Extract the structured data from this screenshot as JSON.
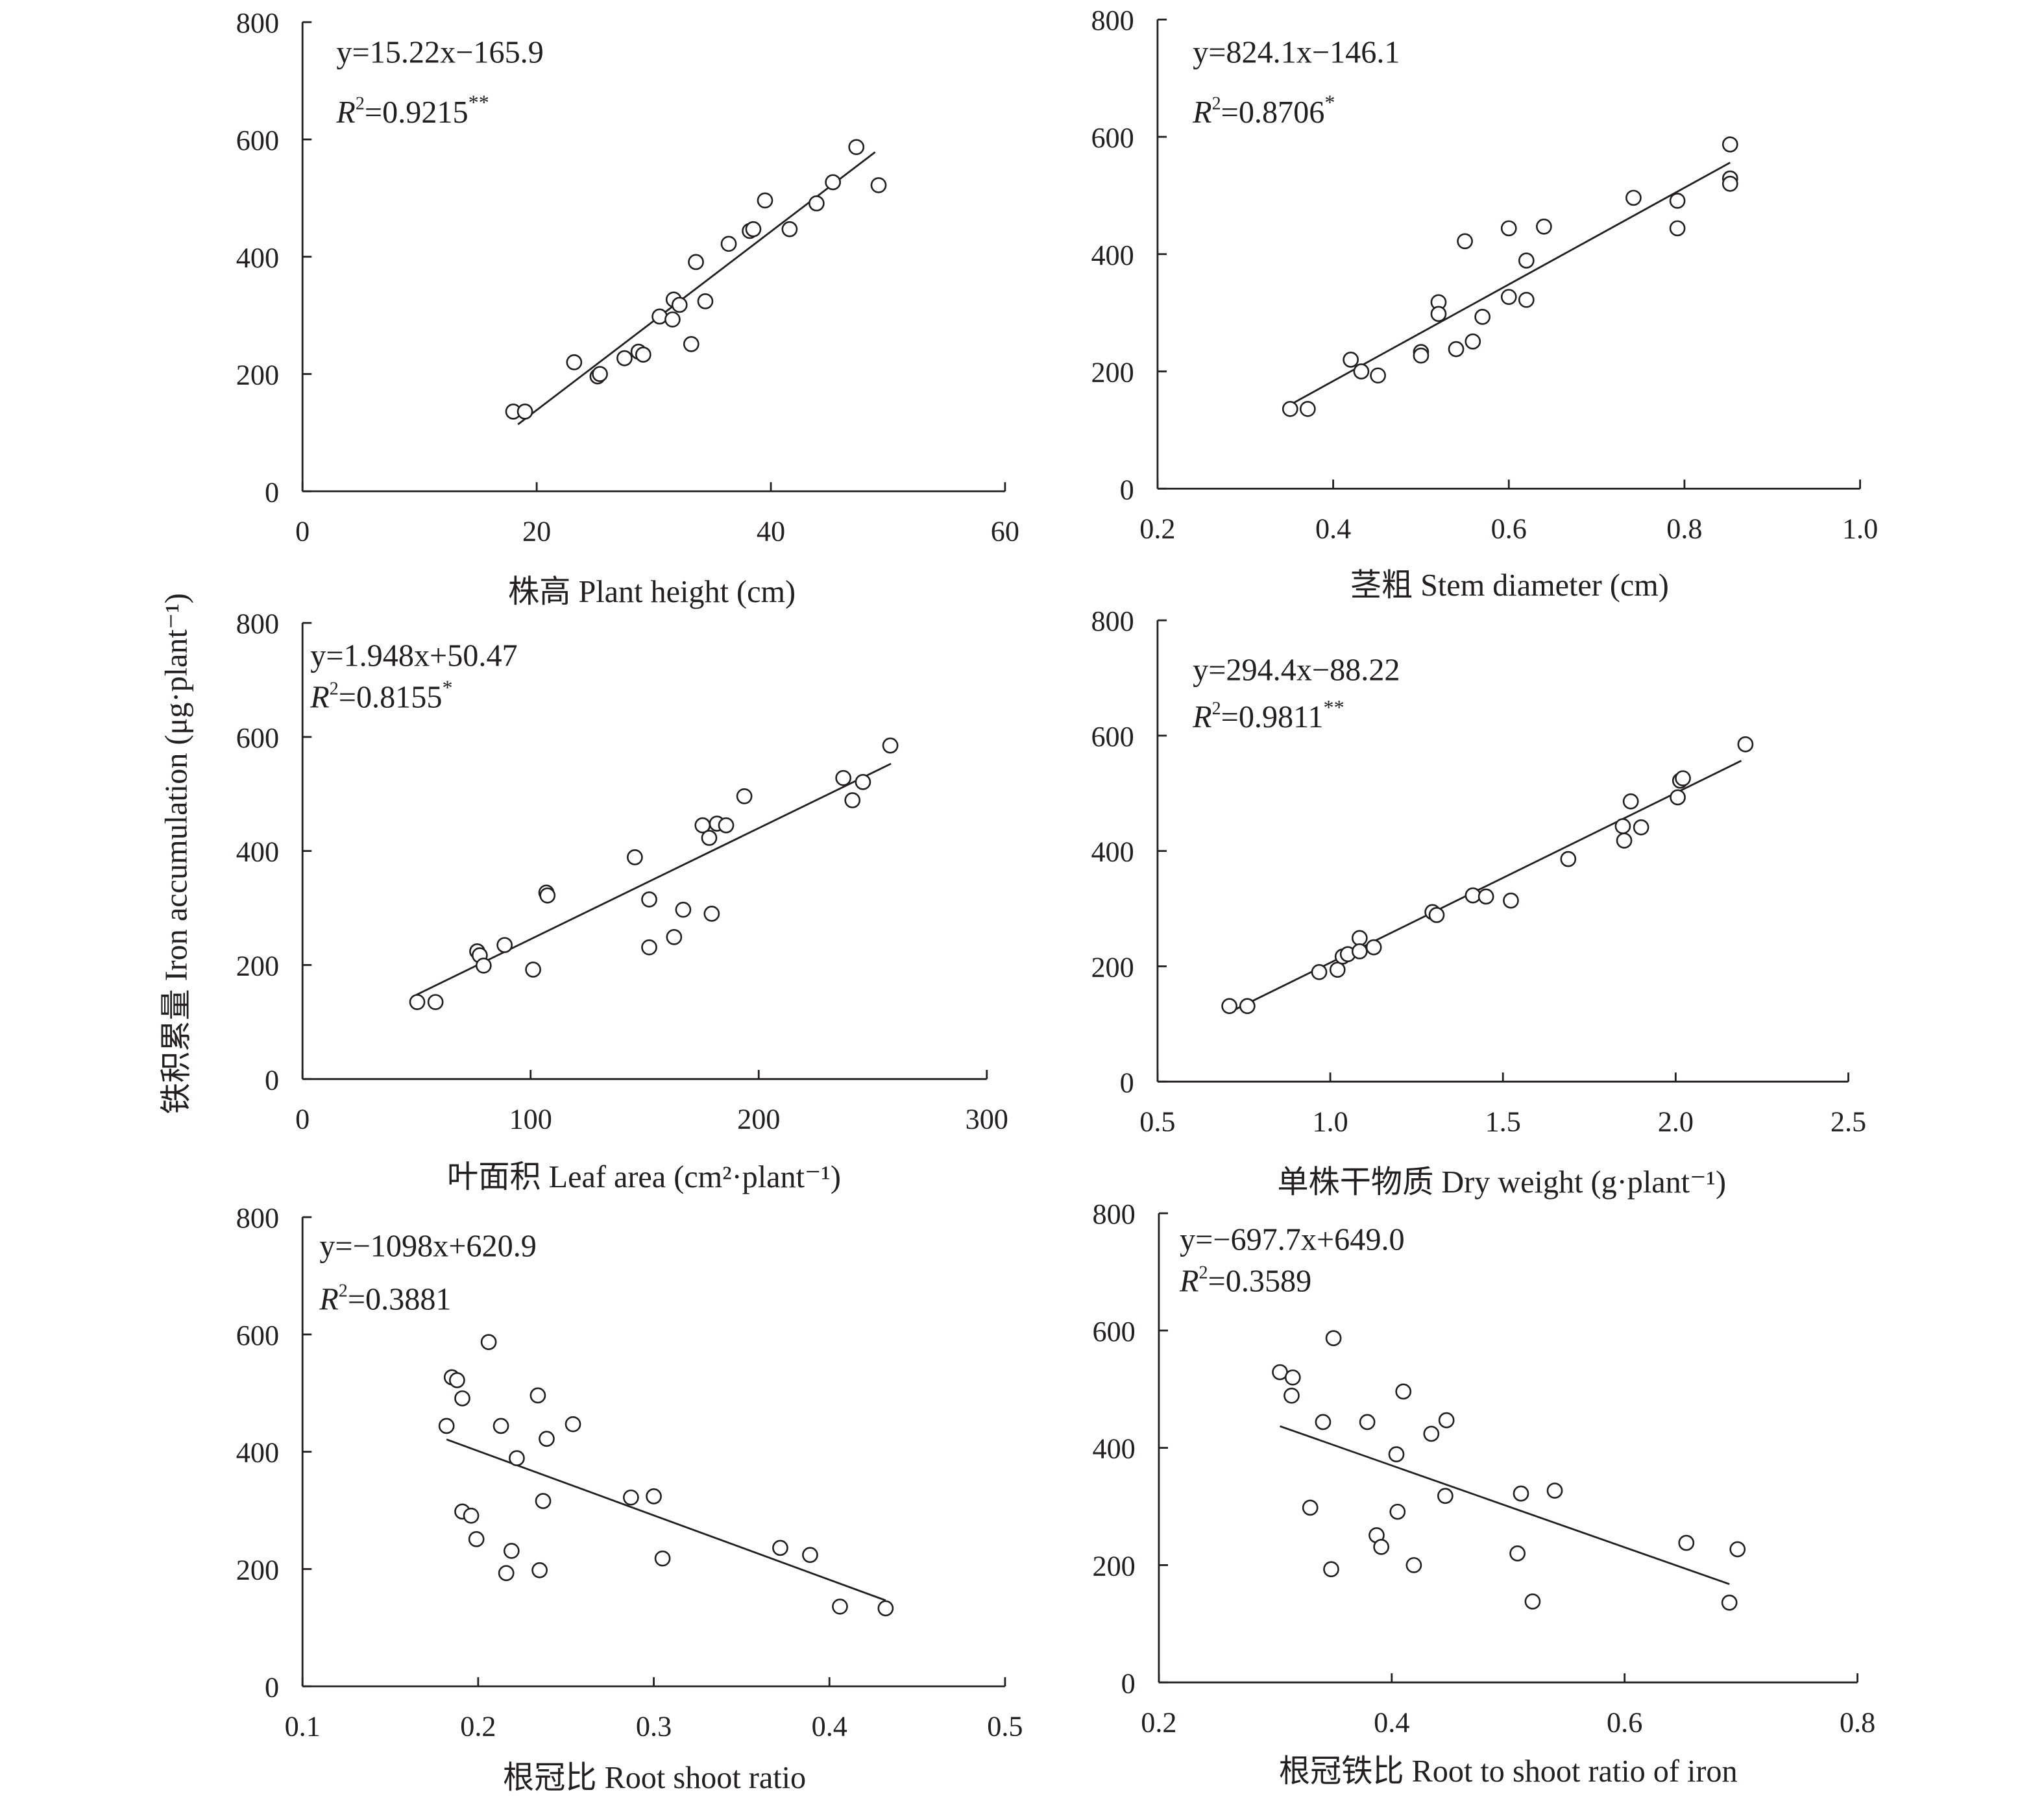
{
  "chart_data": [
    {
      "type": "scatter",
      "xlabel": "株高 Plant height (cm)",
      "xlim": [
        0,
        60
      ],
      "xticks": [
        0,
        20,
        40,
        60
      ],
      "ylim": [
        0,
        800
      ],
      "yticks": [
        0,
        200,
        400,
        600,
        800
      ],
      "equation": "y=15.22x−165.9",
      "r2": "0.9215",
      "significance": "**",
      "fit": {
        "slope": 15.22,
        "intercept": -165.9,
        "x_range": [
          18.4,
          48.9
        ]
      },
      "x": [
        18.0,
        19.0,
        23.2,
        25.2,
        25.4,
        27.5,
        28.7,
        29.1,
        30.5,
        31.6,
        31.7,
        32.2,
        33.2,
        33.6,
        34.4,
        36.4,
        38.2,
        38.5,
        39.5,
        41.6,
        43.9,
        45.3,
        47.3,
        49.2
      ],
      "y": [
        136,
        136,
        220,
        196,
        200,
        227,
        238,
        233,
        298,
        293,
        327,
        318,
        251,
        391,
        324,
        422,
        444,
        447,
        496,
        447,
        491,
        527,
        587,
        522
      ]
    },
    {
      "type": "scatter",
      "xlabel": "茎粗 Stem diameter (cm)",
      "xlim": [
        0.2,
        1.0
      ],
      "xticks": [
        0.2,
        0.4,
        0.6,
        0.8,
        1.0
      ],
      "ylim": [
        0,
        800
      ],
      "yticks": [
        0,
        200,
        400,
        600,
        800
      ],
      "equation": "y=824.1x−146.1",
      "r2": "0.8706",
      "significance": "*",
      "fit": {
        "slope": 824.1,
        "intercept": -146.1,
        "x_range": [
          0.35,
          0.852
        ]
      },
      "x": [
        0.351,
        0.371,
        0.42,
        0.432,
        0.451,
        0.5,
        0.5,
        0.52,
        0.52,
        0.54,
        0.559,
        0.57,
        0.55,
        0.6,
        0.6,
        0.62,
        0.62,
        0.64,
        0.742,
        0.792,
        0.792,
        0.852,
        0.852,
        0.852
      ],
      "y": [
        136,
        136,
        220,
        200,
        193,
        233,
        227,
        318,
        298,
        238,
        251,
        293,
        422,
        444,
        327,
        322,
        389,
        447,
        496,
        491,
        444,
        587,
        529,
        520
      ]
    },
    {
      "type": "scatter",
      "xlabel": "叶面积 Leaf area (cm²·plant⁻¹)",
      "xlim": [
        0,
        300
      ],
      "xticks": [
        0,
        100,
        200,
        300
      ],
      "ylim": [
        0,
        800
      ],
      "yticks": [
        0,
        200,
        400,
        600,
        800
      ],
      "equation": "y=1.948x+50.47",
      "r2": "0.8155",
      "significance": "*",
      "fit": {
        "slope": 1.948,
        "intercept": 50.47,
        "x_range": [
          50,
          258
        ]
      },
      "x": [
        50.3,
        58.3,
        76.6,
        77.7,
        79.4,
        88.6,
        101.1,
        106.9,
        107.4,
        145.7,
        152,
        152,
        162.9,
        166.9,
        179.4,
        175.4,
        178.3,
        181.7,
        185.7,
        193.7,
        237.1,
        241.1,
        245.7,
        257.7
      ],
      "y": [
        135,
        135,
        224,
        217,
        199,
        235,
        192,
        327,
        322,
        389,
        315,
        231,
        249,
        297,
        290,
        445,
        423,
        448,
        445,
        496,
        528,
        489,
        521,
        585
      ]
    },
    {
      "type": "scatter",
      "xlabel": "单株干物质 Dry weight (g·plant⁻¹)",
      "xlim": [
        0.5,
        2.5
      ],
      "xticks": [
        0.5,
        1.0,
        1.5,
        2.0,
        2.5
      ],
      "ylim": [
        0,
        800
      ],
      "yticks": [
        0,
        200,
        400,
        600,
        800
      ],
      "equation": "y=294.4x−88.22",
      "r2": "0.9811",
      "significance": "**",
      "fit": {
        "slope": 294.4,
        "intercept": -88.22,
        "x_range": [
          0.72,
          2.19
        ]
      },
      "x": [
        0.708,
        0.76,
        0.968,
        1.021,
        1.036,
        1.051,
        1.085,
        1.085,
        1.126,
        1.296,
        1.308,
        1.413,
        1.451,
        1.523,
        1.689,
        1.847,
        1.851,
        1.87,
        1.9,
        2.006,
        2.013,
        2.021,
        2.202
      ],
      "y": [
        131,
        131,
        190,
        194,
        217,
        221,
        249,
        226,
        233,
        294,
        289,
        323,
        321,
        314,
        386,
        443,
        418,
        486,
        441,
        493,
        522,
        526,
        585
      ]
    },
    {
      "type": "scatter",
      "xlabel": "根冠比 Root shoot ratio",
      "xlim": [
        0.1,
        0.5
      ],
      "xticks": [
        0.1,
        0.2,
        0.3,
        0.4,
        0.5
      ],
      "ylim": [
        0,
        800
      ],
      "yticks": [
        0,
        200,
        400,
        600,
        800
      ],
      "equation": "y=−1098x+620.9",
      "r2": "0.3881",
      "significance": "",
      "fit": {
        "slope": -1098,
        "intercept": 620.9,
        "x_range": [
          0.182,
          0.432
        ]
      },
      "x": [
        0.182,
        0.185,
        0.188,
        0.191,
        0.191,
        0.196,
        0.199,
        0.206,
        0.213,
        0.216,
        0.219,
        0.222,
        0.234,
        0.235,
        0.237,
        0.239,
        0.254,
        0.287,
        0.3,
        0.305,
        0.372,
        0.389,
        0.406,
        0.432
      ],
      "y": [
        444,
        527,
        522,
        491,
        298,
        291,
        251,
        587,
        444,
        193,
        231,
        389,
        496,
        198,
        316,
        422,
        447,
        322,
        324,
        218,
        236,
        224,
        136,
        133
      ]
    },
    {
      "type": "scatter",
      "xlabel": "根冠铁比 Root to shoot ratio of iron",
      "xlim": [
        0.2,
        0.8
      ],
      "xticks": [
        0.2,
        0.4,
        0.6,
        0.8
      ],
      "ylim": [
        0,
        800
      ],
      "yticks": [
        0,
        200,
        400,
        600,
        800
      ],
      "equation": "y=−697.7x+649.0",
      "r2": "0.3589",
      "significance": "",
      "fit": {
        "slope": -697.7,
        "intercept": 649.0,
        "x_range": [
          0.304,
          0.69
        ]
      },
      "x": [
        0.304,
        0.315,
        0.314,
        0.33,
        0.341,
        0.348,
        0.35,
        0.379,
        0.387,
        0.391,
        0.404,
        0.405,
        0.41,
        0.419,
        0.434,
        0.447,
        0.446,
        0.508,
        0.511,
        0.521,
        0.54,
        0.653,
        0.69,
        0.697
      ],
      "y": [
        529,
        520,
        489,
        298,
        444,
        193,
        587,
        444,
        251,
        231,
        389,
        291,
        496,
        200,
        424,
        447,
        318,
        220,
        322,
        138,
        327,
        238,
        136,
        227
      ]
    }
  ],
  "shared_ylabel": "铁积累量 Iron accumulation (μg·plant⁻¹)"
}
